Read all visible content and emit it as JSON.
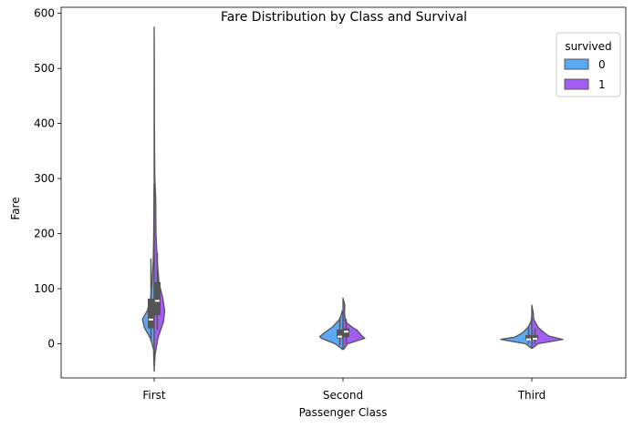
{
  "chart_data": {
    "type": "violin",
    "title": "Fare Distribution by Class and Survival",
    "xlabel": "Passenger Class",
    "ylabel": "Fare",
    "categories": [
      "First",
      "Second",
      "Third"
    ],
    "ylim": [
      -62,
      611
    ],
    "yticks": [
      0,
      100,
      200,
      300,
      400,
      500,
      600
    ],
    "legend": {
      "title": "survived",
      "placement": "top-right",
      "entries": [
        {
          "label": "0",
          "color": "#5ba8f5"
        },
        {
          "label": "1",
          "color": "#a35df4"
        }
      ]
    },
    "series": [
      {
        "name": "0",
        "color": "#5ba8f5",
        "side": "left",
        "distributions": [
          {
            "category": "First",
            "q1": 28,
            "median": 44,
            "q3": 82,
            "whisker_low": 5,
            "whisker_high": 155,
            "profile": [
              [
                -40,
                0.002
              ],
              [
                -10,
                0.02
              ],
              [
                10,
                0.12
              ],
              [
                30,
                0.32
              ],
              [
                45,
                0.38
              ],
              [
                60,
                0.22
              ],
              [
                80,
                0.12
              ],
              [
                110,
                0.07
              ],
              [
                150,
                0.03
              ],
              [
                200,
                0.015
              ],
              [
                250,
                0.01
              ],
              [
                290,
                0.002
              ]
            ]
          },
          {
            "category": "Second",
            "q1": 10,
            "median": 13,
            "q3": 26,
            "whisker_low": -3,
            "whisker_high": 48,
            "profile": [
              [
                -10,
                0.02
              ],
              [
                0,
                0.25
              ],
              [
                10,
                0.7
              ],
              [
                13,
                0.75
              ],
              [
                20,
                0.6
              ],
              [
                30,
                0.35
              ],
              [
                45,
                0.1
              ],
              [
                60,
                0.02
              ]
            ]
          },
          {
            "category": "Third",
            "q1": 7,
            "median": 8,
            "q3": 16,
            "whisker_low": 0,
            "whisker_high": 32,
            "profile": [
              [
                -8,
                0.02
              ],
              [
                0,
                0.2
              ],
              [
                8,
                1.0
              ],
              [
                12,
                0.55
              ],
              [
                20,
                0.3
              ],
              [
                30,
                0.12
              ],
              [
                40,
                0.03
              ],
              [
                50,
                0.0
              ]
            ]
          }
        ]
      },
      {
        "name": "1",
        "color": "#a35df4",
        "side": "right",
        "distributions": [
          {
            "category": "First",
            "q1": 52,
            "median": 78,
            "q3": 112,
            "whisker_low": 25,
            "whisker_high": 165,
            "profile": [
              [
                -50,
                0.0
              ],
              [
                -20,
                0.03
              ],
              [
                10,
                0.12
              ],
              [
                40,
                0.3
              ],
              [
                60,
                0.34
              ],
              [
                85,
                0.27
              ],
              [
                110,
                0.16
              ],
              [
                150,
                0.1
              ],
              [
                200,
                0.06
              ],
              [
                263,
                0.05
              ],
              [
                300,
                0.02
              ],
              [
                400,
                0.008
              ],
              [
                512,
                0.005
              ],
              [
                575,
                0.0
              ]
            ]
          },
          {
            "category": "Second",
            "q1": 12,
            "median": 22,
            "q3": 28,
            "whisker_low": 0,
            "whisker_high": 45,
            "profile": [
              [
                -10,
                0.02
              ],
              [
                0,
                0.15
              ],
              [
                10,
                0.7
              ],
              [
                15,
                0.6
              ],
              [
                25,
                0.45
              ],
              [
                30,
                0.3
              ],
              [
                40,
                0.08
              ],
              [
                55,
                0.05
              ],
              [
                70,
                0.06
              ],
              [
                83,
                0.0
              ]
            ]
          },
          {
            "category": "Third",
            "q1": 7,
            "median": 9,
            "q3": 16,
            "whisker_low": 0,
            "whisker_high": 28,
            "profile": [
              [
                -8,
                0.02
              ],
              [
                0,
                0.2
              ],
              [
                8,
                1.0
              ],
              [
                14,
                0.55
              ],
              [
                20,
                0.4
              ],
              [
                30,
                0.2
              ],
              [
                45,
                0.06
              ],
              [
                55,
                0.05
              ],
              [
                70,
                0.0
              ]
            ]
          }
        ]
      }
    ]
  }
}
